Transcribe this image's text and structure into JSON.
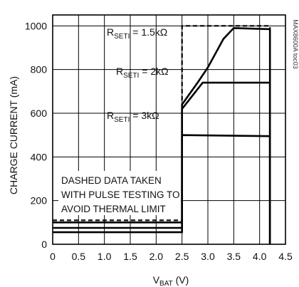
{
  "chart_data": {
    "type": "line",
    "xlabel": "VBAT (V)",
    "xlabel_main": "V",
    "xlabel_sub": "BAT",
    "xlabel_unit": " (V)",
    "ylabel": "CHARGE CURRENT (mA)",
    "xlim": [
      0,
      4.5
    ],
    "ylim": [
      0,
      1050
    ],
    "x_ticks": [
      0,
      0.5,
      1.0,
      1.5,
      2.0,
      2.5,
      3.0,
      3.5,
      4.0,
      4.5
    ],
    "x_tick_labels": [
      "0",
      "0.5",
      "1.0",
      "1.5",
      "2.0",
      "2.5",
      "3.0",
      "3.5",
      "4.0",
      "4.5"
    ],
    "y_ticks": [
      0,
      200,
      400,
      600,
      800,
      1000
    ],
    "y_tick_labels": [
      "0",
      "200",
      "400",
      "600",
      "800",
      "1000"
    ],
    "grid": true,
    "series": [
      {
        "name": "RSETI = 1.5kΩ",
        "label_main": "R",
        "label_sub": "SETI",
        "label_rest": " = 1.5kΩ",
        "style": "solid",
        "x": [
          0,
          2.5,
          2.5,
          2.8,
          3.0,
          3.3,
          3.5,
          4.2,
          4.2
        ],
        "y": [
          100,
          100,
          640,
          740,
          810,
          940,
          990,
          985,
          0
        ]
      },
      {
        "name": "RSETI = 2kΩ",
        "label_main": "R",
        "label_sub": "SETI",
        "label_rest": " = 2kΩ",
        "style": "solid",
        "x": [
          0,
          2.5,
          2.5,
          2.9,
          4.2,
          4.2
        ],
        "y": [
          75,
          75,
          620,
          740,
          740,
          0
        ]
      },
      {
        "name": "RSETI = 3kΩ",
        "label_main": "R",
        "label_sub": "SETI",
        "label_rest": " = 3kΩ",
        "style": "solid",
        "x": [
          0,
          2.5,
          2.5,
          4.2,
          4.2
        ],
        "y": [
          55,
          55,
          500,
          495,
          0
        ]
      },
      {
        "name": "Dashed (pulse testing)",
        "style": "dashed",
        "x": [
          0,
          2.5,
          2.5,
          4.2,
          4.2
        ],
        "y": [
          110,
          110,
          1000,
          1000,
          0
        ]
      }
    ],
    "annotations": [
      "DASHED DATA TAKEN",
      "WITH PULSE TESTING TO",
      "AVOID THERMAL LIMIT"
    ],
    "watermark": "MAX8600A toc03"
  }
}
